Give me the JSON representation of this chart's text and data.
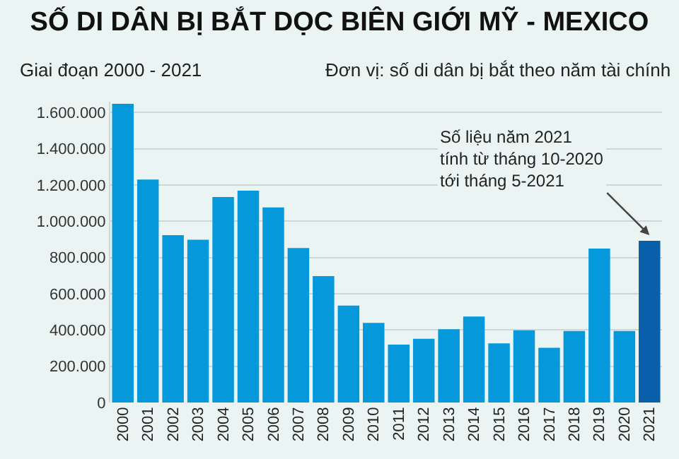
{
  "chart_data": {
    "type": "bar",
    "title": "SỐ DI DÂN BỊ BẮT DỌC BIÊN GIỚI MỸ - MEXICO",
    "subtitle": "Giai đoạn 2000 - 2021",
    "annotations": [
      "Đơn vị: số di dân bị bắt theo năm tài chính",
      {
        "text": "Số liệu năm 2021\ntính từ tháng 10-2020\ntới tháng 5-2021",
        "x": "2021",
        "y": 892000
      }
    ],
    "categories": [
      "2000",
      "2001",
      "2002",
      "2003",
      "2004",
      "2005",
      "2006",
      "2007",
      "2008",
      "2009",
      "2010",
      "2011",
      "2012",
      "2013",
      "2014",
      "2015",
      "2016",
      "2017",
      "2018",
      "2019",
      "2020",
      "2021"
    ],
    "values": [
      1648000,
      1230000,
      924000,
      898000,
      1134000,
      1169000,
      1076000,
      852000,
      698000,
      535000,
      439000,
      320000,
      352000,
      404000,
      474000,
      326000,
      398000,
      302000,
      395000,
      849000,
      395000,
      892000
    ],
    "colors": [
      "#0598db",
      "#0598db",
      "#0598db",
      "#0598db",
      "#0598db",
      "#0598db",
      "#0598db",
      "#0598db",
      "#0598db",
      "#0598db",
      "#0598db",
      "#0598db",
      "#0598db",
      "#0598db",
      "#0598db",
      "#0598db",
      "#0598db",
      "#0598db",
      "#0598db",
      "#0598db",
      "#0598db",
      "#0a5fab"
    ],
    "ylim": [
      0,
      1660000
    ],
    "yticks": [
      {
        "value": 0,
        "label": "0"
      },
      {
        "value": 200000,
        "label": "200.000"
      },
      {
        "value": 400000,
        "label": "400.000"
      },
      {
        "value": 600000,
        "label": "600.000"
      },
      {
        "value": 800000,
        "label": "800.000"
      },
      {
        "value": 1000000,
        "label": "1.000.000"
      },
      {
        "value": 1200000,
        "label": "1.200.000"
      },
      {
        "value": 1400000,
        "label": "1.400.000"
      },
      {
        "value": 1600000,
        "label": "1.600.000"
      }
    ],
    "grid": "y"
  }
}
